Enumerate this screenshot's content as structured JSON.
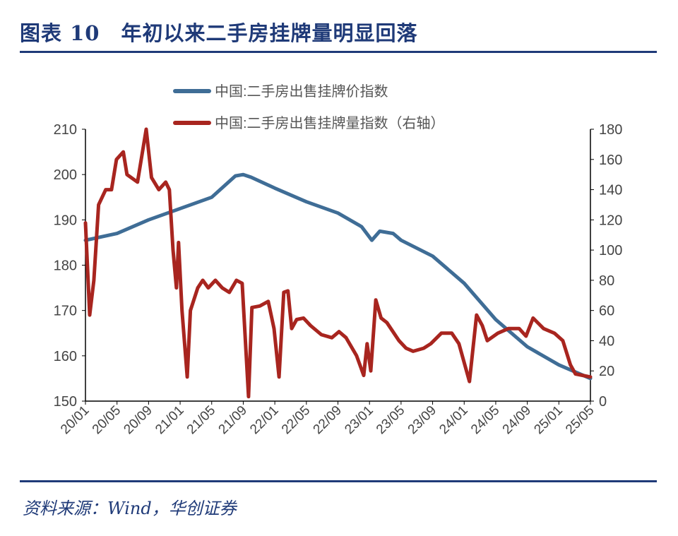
{
  "title": "图表 10　年初以来二手房挂牌量明显回落",
  "source": "资料来源：Wind，华创证券",
  "chart_data": {
    "type": "line",
    "title": "",
    "legend_position": "top-center",
    "grid": false,
    "x_ticks": [
      "20/01",
      "20/05",
      "20/09",
      "21/01",
      "21/05",
      "21/09",
      "22/01",
      "22/05",
      "22/09",
      "23/01",
      "23/05",
      "23/09",
      "24/01",
      "24/05",
      "24/09",
      "25/01",
      "25/05"
    ],
    "left_axis": {
      "ylim": [
        150,
        210
      ],
      "ticks": [
        150,
        160,
        170,
        180,
        190,
        200,
        210
      ]
    },
    "right_axis": {
      "ylim": [
        0,
        180
      ],
      "ticks": [
        0,
        20,
        40,
        60,
        80,
        100,
        120,
        140,
        160,
        180
      ]
    },
    "series": [
      {
        "name": "中国:二手房出售挂牌价指数",
        "axis": "left",
        "color": "#3f6d96",
        "points": [
          [
            "2020-01-01",
            185.5
          ],
          [
            "2020-05-01",
            187
          ],
          [
            "2020-09-01",
            190
          ],
          [
            "2021-01-01",
            192.5
          ],
          [
            "2021-05-01",
            195
          ],
          [
            "2021-08-01",
            199.7
          ],
          [
            "2021-09-01",
            200
          ],
          [
            "2021-10-01",
            199.4
          ],
          [
            "2022-01-01",
            197
          ],
          [
            "2022-05-01",
            194
          ],
          [
            "2022-09-01",
            191.5
          ],
          [
            "2022-12-01",
            188.5
          ],
          [
            "2023-01-10",
            185.5
          ],
          [
            "2023-02-10",
            187.5
          ],
          [
            "2023-04-01",
            187
          ],
          [
            "2023-05-01",
            185.5
          ],
          [
            "2023-09-01",
            182
          ],
          [
            "2024-01-01",
            176
          ],
          [
            "2024-05-01",
            168
          ],
          [
            "2024-09-01",
            162
          ],
          [
            "2025-01-01",
            158
          ],
          [
            "2025-05-01",
            155
          ]
        ]
      },
      {
        "name": "中国:二手房出售挂牌量指数（右轴）",
        "axis": "right",
        "color": "#a8251f",
        "points": [
          [
            "2020-01-01",
            118
          ],
          [
            "2020-01-17",
            57
          ],
          [
            "2020-02-03",
            80
          ],
          [
            "2020-02-21",
            130
          ],
          [
            "2020-03-18",
            140
          ],
          [
            "2020-04-10",
            140
          ],
          [
            "2020-04-29",
            160
          ],
          [
            "2020-05-25",
            165
          ],
          [
            "2020-06-09",
            150
          ],
          [
            "2020-07-19",
            145
          ],
          [
            "2020-08-22",
            180
          ],
          [
            "2020-09-12",
            148
          ],
          [
            "2020-10-10",
            140
          ],
          [
            "2020-11-06",
            145
          ],
          [
            "2020-11-20",
            140
          ],
          [
            "2020-12-04",
            100
          ],
          [
            "2020-12-17",
            75
          ],
          [
            "2020-12-25",
            105
          ],
          [
            "2021-01-08",
            60
          ],
          [
            "2021-01-28",
            16
          ],
          [
            "2021-02-10",
            60
          ],
          [
            "2021-03-08",
            75
          ],
          [
            "2021-03-27",
            80
          ],
          [
            "2021-04-18",
            75
          ],
          [
            "2021-05-15",
            80
          ],
          [
            "2021-06-11",
            75
          ],
          [
            "2021-07-08",
            72
          ],
          [
            "2021-08-05",
            80
          ],
          [
            "2021-08-27",
            78
          ],
          [
            "2021-09-21",
            3
          ],
          [
            "2021-10-04",
            62
          ],
          [
            "2021-11-04",
            63
          ],
          [
            "2021-12-06",
            66
          ],
          [
            "2021-12-28",
            48
          ],
          [
            "2022-01-17",
            16
          ],
          [
            "2022-02-05",
            72
          ],
          [
            "2022-02-21",
            73
          ],
          [
            "2022-03-05",
            48
          ],
          [
            "2022-03-24",
            54
          ],
          [
            "2022-04-20",
            55
          ],
          [
            "2022-05-17",
            50
          ],
          [
            "2022-06-28",
            44
          ],
          [
            "2022-08-08",
            42
          ],
          [
            "2022-09-05",
            46
          ],
          [
            "2022-10-02",
            42
          ],
          [
            "2022-11-12",
            30
          ],
          [
            "2022-12-09",
            17
          ],
          [
            "2022-12-22",
            38
          ],
          [
            "2023-01-06",
            20
          ],
          [
            "2023-01-25",
            67
          ],
          [
            "2023-02-15",
            55
          ],
          [
            "2023-03-07",
            52
          ],
          [
            "2023-04-23",
            40
          ],
          [
            "2023-05-20",
            35
          ],
          [
            "2023-06-17",
            33
          ],
          [
            "2023-07-27",
            35
          ],
          [
            "2023-08-24",
            38
          ],
          [
            "2023-10-04",
            45
          ],
          [
            "2023-11-14",
            45
          ],
          [
            "2023-12-11",
            38
          ],
          [
            "2024-01-21",
            13
          ],
          [
            "2024-02-18",
            57
          ],
          [
            "2024-03-10",
            50
          ],
          [
            "2024-03-29",
            40
          ],
          [
            "2024-05-09",
            45
          ],
          [
            "2024-06-19",
            48
          ],
          [
            "2024-07-30",
            48
          ],
          [
            "2024-08-26",
            43
          ],
          [
            "2024-09-23",
            55
          ],
          [
            "2024-11-03",
            48
          ],
          [
            "2024-12-14",
            45
          ],
          [
            "2025-01-16",
            40
          ],
          [
            "2025-02-15",
            24
          ],
          [
            "2025-03-04",
            18
          ],
          [
            "2025-05-01",
            16
          ]
        ]
      }
    ]
  }
}
